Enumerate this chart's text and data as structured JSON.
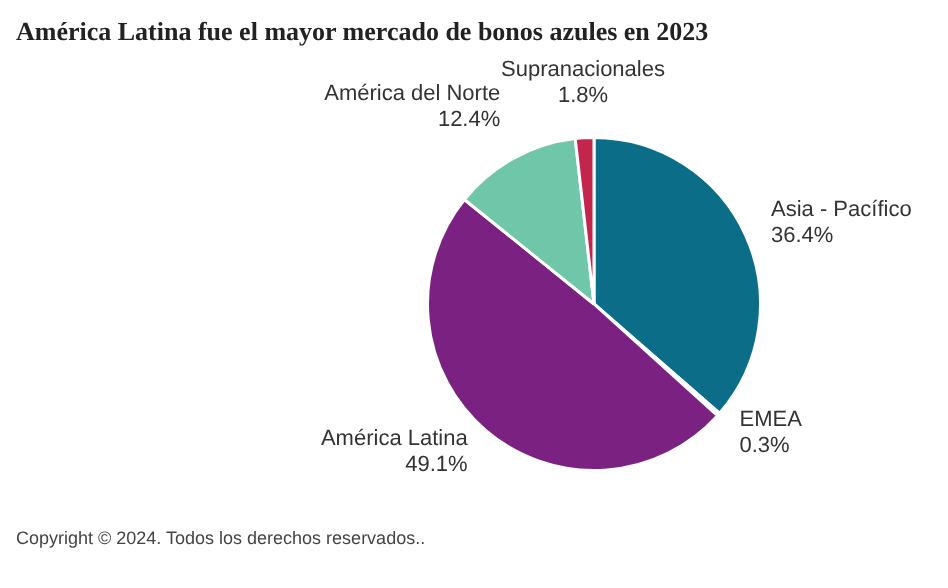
{
  "chart_data": {
    "type": "pie",
    "title": "América Latina fue el mayor mercado de bonos azules en 2023",
    "categories": [
      "Asia - Pacífico",
      "EMEA",
      "América Latina",
      "América del Norte",
      "Supranacionales"
    ],
    "values": [
      36.4,
      0.3,
      49.1,
      12.4,
      1.8
    ],
    "colors": [
      "#0b6d87",
      "#e9a03b",
      "#7b2181",
      "#6fc6a8",
      "#c3264c"
    ],
    "value_labels": [
      "36.4%",
      "0.3%",
      "49.1%",
      "12.4%",
      "1.8%"
    ],
    "legend": false,
    "annotations": [
      "Copyright © 2024. Todos los derechos reservados.."
    ]
  }
}
